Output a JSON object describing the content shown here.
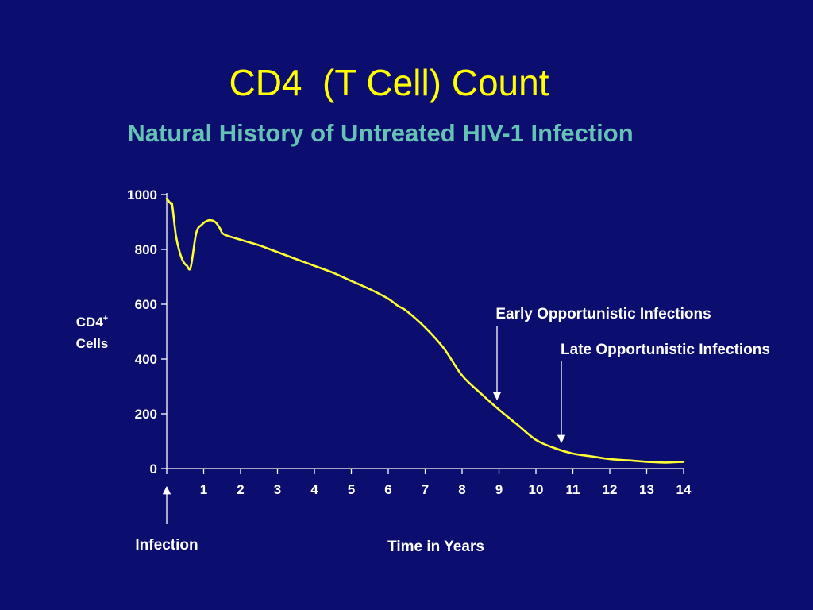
{
  "slide": {
    "title": "CD4  (T Cell) Count",
    "subtitle": "Natural History of Untreated HIV-1 Infection",
    "background": "#0b0e6e",
    "title_color": "#ffff00",
    "subtitle_color": "#66c2b4"
  },
  "chart_data": {
    "type": "line",
    "title": "CD4  (T Cell) Count",
    "subtitle": "Natural History of Untreated HIV-1 Infection",
    "ylabel_line1": "CD4",
    "ylabel_sup": "+",
    "ylabel_line2": "Cells",
    "xlabel": "Time in Years",
    "ylim": [
      0,
      1000
    ],
    "xlim": [
      0,
      14
    ],
    "yticks": [
      0,
      200,
      400,
      600,
      800,
      1000
    ],
    "ytick_labels": [
      "0",
      "200",
      "400",
      "600",
      "800",
      "1000"
    ],
    "xticks": [
      1,
      2,
      3,
      4,
      5,
      6,
      7,
      8,
      9,
      10,
      11,
      12,
      13,
      14
    ],
    "xtick_labels": [
      "1",
      "2",
      "3",
      "4",
      "5",
      "6",
      "7",
      "8",
      "9",
      "10",
      "11",
      "12",
      "13",
      "14"
    ],
    "grid": false,
    "line_color": "#ffff33",
    "series": [
      {
        "x": [
          0,
          0.12,
          0.15,
          0.25,
          0.35,
          0.45,
          0.55,
          0.65,
          0.8,
          0.95,
          1.1,
          1.25,
          1.35,
          1.45,
          1.55,
          2,
          2.5,
          3,
          3.5,
          4,
          4.5,
          5,
          5.5,
          6,
          6.25,
          6.5,
          7,
          7.5,
          8,
          8.5,
          9,
          9.5,
          10,
          10.5,
          11,
          11.5,
          12,
          12.5,
          13,
          13.5,
          14
        ],
        "y": [
          985,
          965,
          960,
          850,
          790,
          755,
          740,
          735,
          860,
          890,
          905,
          905,
          895,
          875,
          855,
          835,
          815,
          790,
          765,
          740,
          715,
          685,
          655,
          620,
          595,
          575,
          515,
          440,
          340,
          275,
          215,
          160,
          105,
          75,
          55,
          45,
          35,
          30,
          25,
          22,
          25
        ]
      }
    ],
    "annotations": [
      {
        "text": "Early Opportunistic Infections",
        "x": 9,
        "y": 255
      },
      {
        "text": "Late Opportunistic Infections",
        "x": 10.8,
        "y": 95
      },
      {
        "text": "Infection",
        "x": 0
      }
    ]
  }
}
